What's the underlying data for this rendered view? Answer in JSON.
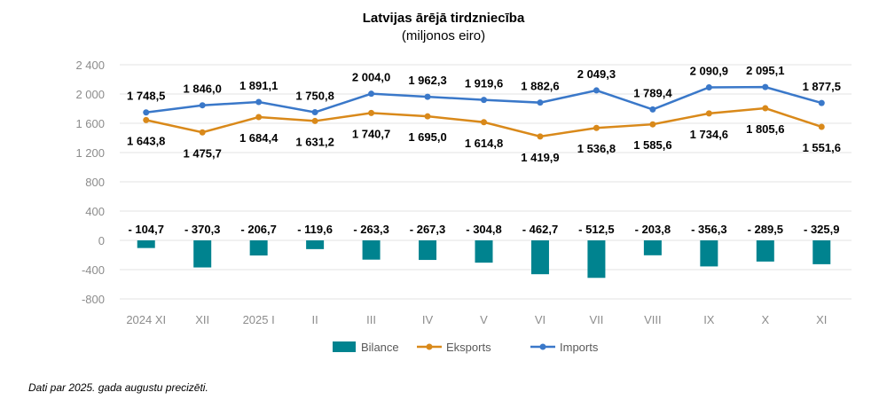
{
  "chart_data": {
    "type": "bar+line",
    "title": "Latvijas ārējā tirdzniecība",
    "subtitle": "(miljonos eiro)",
    "categories": [
      "2024 XI",
      "XII",
      "2025 I",
      "II",
      "III",
      "IV",
      "V",
      "VI",
      "VII",
      "VIII",
      "IX",
      "X",
      "XI"
    ],
    "yticks": [
      2400,
      2000,
      1600,
      1200,
      800,
      400,
      0,
      -400,
      -800
    ],
    "ytick_labels": [
      "2 400",
      "2 000",
      "1 600",
      "1 200",
      "800",
      "400",
      "0",
      "-400",
      "-800"
    ],
    "ylim": [
      -800,
      2400
    ],
    "grid": true,
    "legend_position": "bottom",
    "series": [
      {
        "name": "Bilance",
        "type": "bar",
        "color": "#00838F",
        "values": [
          -104.7,
          -370.3,
          -206.7,
          -119.6,
          -263.3,
          -267.3,
          -304.8,
          -462.7,
          -512.5,
          -203.8,
          -356.3,
          -289.5,
          -325.9
        ],
        "labels": [
          "- 104,7",
          "- 370,3",
          "- 206,7",
          "- 119,6",
          "- 263,3",
          "- 267,3",
          "- 304,8",
          "- 462,7",
          "- 512,5",
          "- 203,8",
          "- 356,3",
          "- 289,5",
          "- 325,9"
        ]
      },
      {
        "name": "Eksports",
        "type": "line",
        "color": "#D9891A",
        "values": [
          1643.8,
          1475.7,
          1684.4,
          1631.2,
          1740.7,
          1695.0,
          1614.8,
          1419.9,
          1536.8,
          1585.6,
          1734.6,
          1805.6,
          1551.6
        ],
        "labels": [
          "1 643,8",
          "1 475,7",
          "1 684,4",
          "1 631,2",
          "1 740,7",
          "1 695,0",
          "1 614,8",
          "1 419,9",
          "1 536,8",
          "1 585,6",
          "1 734,6",
          "1 805,6",
          "1 551,6"
        ]
      },
      {
        "name": "Imports",
        "type": "line",
        "color": "#3A78C9",
        "values": [
          1748.5,
          1846.0,
          1891.1,
          1750.8,
          2004.0,
          1962.3,
          1919.6,
          1882.6,
          2049.3,
          1789.4,
          2090.9,
          2095.1,
          1877.5
        ],
        "labels": [
          "1 748,5",
          "1 846,0",
          "1 891,1",
          "1 750,8",
          "2 004,0",
          "1 962,3",
          "1 919,6",
          "1 882,6",
          "2 049,3",
          "1 789,4",
          "2 090,9",
          "2 095,1",
          "1 877,5"
        ]
      }
    ]
  },
  "footnote": "Dati par 2025. gada augustu precizēti."
}
